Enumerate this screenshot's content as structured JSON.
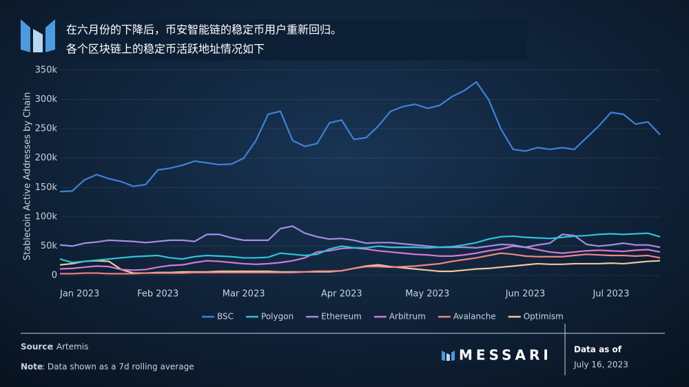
{
  "header": {
    "lines": [
      "在六月份的下降后，币安智能链的稳定币用户重新回归。",
      "各个区块链上的稳定币活跃地址情况如下"
    ]
  },
  "chart_data": {
    "type": "line",
    "y_label": "Stablecoin Active Addresses by Chain",
    "categories": [
      "Jan 2023",
      null,
      null,
      null,
      null,
      null,
      null,
      null,
      "Feb 2023",
      null,
      null,
      null,
      null,
      null,
      null,
      "Mar 2023",
      null,
      null,
      null,
      null,
      null,
      null,
      null,
      "Apr 2023",
      null,
      null,
      null,
      null,
      null,
      null,
      "May 2023",
      null,
      null,
      null,
      null,
      null,
      null,
      null,
      "Jun 2023",
      null,
      null,
      null,
      null,
      null,
      null,
      "Jul 2023",
      null,
      null,
      null,
      null
    ],
    "ylim": [
      -20000,
      350000
    ],
    "yticks": [
      0,
      {
        "value": 50000,
        "label": "50k"
      },
      {
        "value": 100000,
        "label": "100k"
      },
      {
        "value": 150000,
        "label": "150k"
      },
      {
        "value": 200000,
        "label": "200k"
      },
      {
        "value": 250000,
        "label": "250k"
      },
      {
        "value": 300000,
        "label": "300k"
      },
      {
        "value": 350000,
        "label": "350k"
      }
    ],
    "grid": true,
    "legend": "bottom",
    "series": [
      {
        "name": "BSC",
        "color": "#3f83d8",
        "values": [
          143000,
          144000,
          163000,
          172000,
          165000,
          160000,
          152000,
          155000,
          180000,
          183000,
          188000,
          195000,
          192000,
          189000,
          190000,
          200000,
          230000,
          275000,
          280000,
          230000,
          220000,
          225000,
          260000,
          265000,
          232000,
          235000,
          255000,
          280000,
          288000,
          292000,
          285000,
          290000,
          305000,
          315000,
          330000,
          300000,
          250000,
          215000,
          212000,
          218000,
          215000,
          218000,
          215000,
          235000,
          255000,
          278000,
          275000,
          258000,
          262000,
          240000
        ]
      },
      {
        "name": "Polygon",
        "color": "#2ec4d9",
        "values": [
          28000,
          22000,
          24000,
          26000,
          28000,
          30000,
          32000,
          33000,
          34000,
          30000,
          28000,
          32000,
          34000,
          33000,
          32000,
          30000,
          30000,
          31000,
          38000,
          36000,
          34000,
          36000,
          45000,
          50000,
          47000,
          47000,
          50000,
          48000,
          48000,
          48000,
          47000,
          48000,
          49000,
          52000,
          56000,
          62000,
          66000,
          67000,
          65000,
          64000,
          63000,
          65000,
          67000,
          68000,
          70000,
          71000,
          70000,
          71000,
          72000,
          66000
        ]
      },
      {
        "name": "Ethereum",
        "color": "#a58ee6",
        "values": [
          52000,
          50000,
          55000,
          57000,
          60000,
          59000,
          58000,
          56000,
          58000,
          60000,
          60000,
          58000,
          70000,
          70000,
          64000,
          60000,
          60000,
          60000,
          80000,
          84000,
          72000,
          66000,
          62000,
          63000,
          60000,
          55000,
          56000,
          56000,
          54000,
          52000,
          50000,
          48000,
          48000,
          48000,
          47000,
          50000,
          53000,
          52000,
          48000,
          52000,
          55000,
          70000,
          68000,
          53000,
          50000,
          52000,
          55000,
          52000,
          52000,
          48000
        ]
      },
      {
        "name": "Arbitrum",
        "color": "#d67ad6",
        "values": [
          11000,
          12000,
          14000,
          16000,
          15000,
          10000,
          9000,
          10000,
          14000,
          17000,
          18000,
          22000,
          25000,
          24000,
          22000,
          20000,
          19000,
          20000,
          22000,
          25000,
          30000,
          40000,
          42000,
          46000,
          47000,
          45000,
          42000,
          40000,
          38000,
          36000,
          35000,
          33000,
          33000,
          35000,
          38000,
          42000,
          45000,
          50000,
          48000,
          44000,
          40000,
          38000,
          40000,
          42000,
          43000,
          42000,
          41000,
          43000,
          44000,
          40000
        ]
      },
      {
        "name": "Avalanche",
        "color": "#ef8585",
        "values": [
          3000,
          3000,
          4000,
          4000,
          3000,
          3000,
          3000,
          4000,
          4000,
          4000,
          4000,
          5000,
          5000,
          5000,
          5000,
          5000,
          5000,
          5000,
          5000,
          5000,
          6000,
          6000,
          6000,
          8000,
          12000,
          15000,
          15000,
          14000,
          15000,
          16000,
          18000,
          20000,
          24000,
          27000,
          30000,
          34000,
          38000,
          36000,
          33000,
          32000,
          32000,
          32000,
          34000,
          36000,
          35000,
          34000,
          34000,
          33000,
          34000,
          30000
        ]
      },
      {
        "name": "Optimism",
        "color": "#f3c79e",
        "values": [
          18000,
          20000,
          24000,
          25000,
          24000,
          10000,
          4000,
          4000,
          5000,
          5000,
          6000,
          6000,
          6000,
          7000,
          7000,
          7000,
          7000,
          7000,
          6000,
          6000,
          6000,
          7000,
          7000,
          8000,
          12000,
          16000,
          18000,
          15000,
          13000,
          11000,
          9000,
          7000,
          7000,
          9000,
          11000,
          12000,
          14000,
          16000,
          18000,
          20000,
          19000,
          19000,
          20000,
          20000,
          20000,
          21000,
          20000,
          22000,
          24000,
          25000
        ]
      }
    ]
  },
  "footer": {
    "source_label": "Source",
    "source": ": Artemis",
    "note_label": "Note",
    "note": ": Data shown as a 7d rolling average",
    "brand": "MESSARI",
    "date_label": "Data as of",
    "date": "July 16, 2023"
  }
}
